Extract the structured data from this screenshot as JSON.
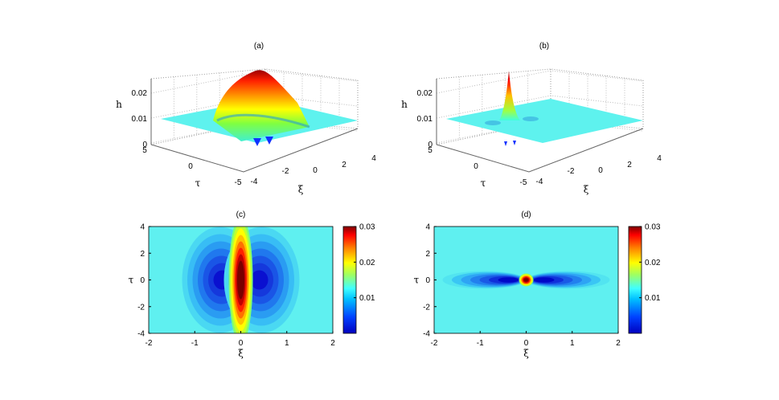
{
  "chart_data": [
    {
      "type": "surface",
      "title": "(a)",
      "xlabel": "ξ",
      "ylabel": "τ",
      "zlabel": "h",
      "x_ticks": [
        "-4",
        "-2",
        "0",
        "2",
        "4"
      ],
      "y_ticks": [
        "5",
        "0",
        "-5"
      ],
      "z_ticks": [
        "0",
        "0.01",
        "0.02"
      ],
      "xlim": [
        -4,
        4
      ],
      "ylim": [
        -5,
        5
      ],
      "zlim": [
        0,
        0.025
      ],
      "peak_h": 0.028,
      "background_h": 0.01,
      "grid": true
    },
    {
      "type": "surface",
      "title": "(b)",
      "xlabel": "ξ",
      "ylabel": "τ",
      "zlabel": "h",
      "x_ticks": [
        "-4",
        "-2",
        "0",
        "2",
        "4"
      ],
      "y_ticks": [
        "5",
        "0",
        "-5"
      ],
      "z_ticks": [
        "0",
        "0.01",
        "0.02"
      ],
      "xlim": [
        -4,
        4
      ],
      "ylim": [
        -5,
        5
      ],
      "zlim": [
        0,
        0.025
      ],
      "peak_h": 0.028,
      "background_h": 0.01,
      "grid": true
    },
    {
      "type": "heatmap",
      "title": "(c)",
      "xlabel": "ξ",
      "ylabel": "τ",
      "x_ticks": [
        "-2",
        "-1",
        "0",
        "1",
        "2"
      ],
      "y_ticks": [
        "4",
        "2",
        "0",
        "-2",
        "-4"
      ],
      "xlim": [
        -2,
        2
      ],
      "ylim": [
        -4,
        4
      ],
      "colorbar_ticks": [
        "0.03",
        "0.02",
        "0.01"
      ],
      "colorbar_range": [
        0.0,
        0.03
      ],
      "background_h": 0.01,
      "peak_h": 0.03
    },
    {
      "type": "heatmap",
      "title": "(d)",
      "xlabel": "ξ",
      "ylabel": "τ",
      "x_ticks": [
        "-2",
        "-1",
        "0",
        "1",
        "2"
      ],
      "y_ticks": [
        "4",
        "2",
        "0",
        "-2",
        "-4"
      ],
      "xlim": [
        -2,
        2
      ],
      "ylim": [
        -4,
        4
      ],
      "colorbar_ticks": [
        "0.03",
        "0.02",
        "0.01"
      ],
      "colorbar_range": [
        0.0,
        0.03
      ],
      "background_h": 0.01,
      "peak_h": 0.03
    }
  ]
}
